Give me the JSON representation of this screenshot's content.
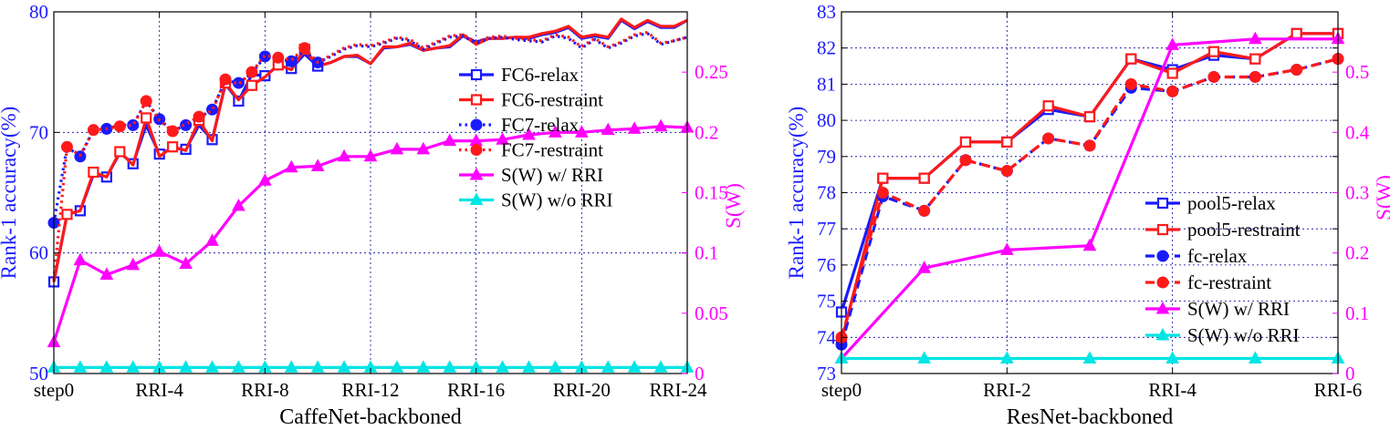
{
  "colors": {
    "blue": "#1a1aff",
    "red": "#ff1a1a",
    "magenta": "#ff00ff",
    "cyan": "#00e5e5",
    "grid": "#0000a0",
    "axis": "#000000"
  },
  "chart_data": [
    {
      "type": "line",
      "xlabel": "CaffeNet-backboned",
      "ylabel": "Rank-1 accuracy(%)",
      "y2label": "S(W)",
      "ylim": [
        50,
        80
      ],
      "yticks": [
        50,
        60,
        70,
        80
      ],
      "y2lim": [
        0,
        0.3
      ],
      "y2ticks": [
        0,
        0.05,
        0.1,
        0.15,
        0.2,
        0.25
      ],
      "y2ticklabels": [
        "0",
        "0.05",
        "0.1",
        "0.15",
        "0.2",
        "0.25"
      ],
      "xlim": [
        0,
        48
      ],
      "xticks": [
        0,
        8,
        16,
        24,
        32,
        40,
        48
      ],
      "xticklabels": [
        "step0",
        "RRI-4",
        "RRI-8",
        "RRI-12",
        "RRI-16",
        "RRI-20",
        "RRI-24"
      ],
      "grid": true,
      "legend_position": "center-right",
      "series": [
        {
          "name": "FC6-relax",
          "axis": "left",
          "color": "blue",
          "style": "solid",
          "marker": "square",
          "x": [
            0,
            1,
            2,
            3,
            4,
            5,
            6,
            7,
            8,
            9,
            10,
            11,
            12,
            13,
            14,
            15,
            16,
            17,
            18,
            19,
            20,
            21,
            22,
            23,
            24,
            25,
            26,
            27,
            28,
            29,
            30,
            31,
            32,
            33,
            34,
            35,
            36,
            37,
            38,
            39,
            40,
            41,
            42,
            43,
            44,
            45,
            46,
            47,
            48
          ],
          "values": [
            57.6,
            63.2,
            63.5,
            66.5,
            66.3,
            68.3,
            67.4,
            70.6,
            68.2,
            68.7,
            68.6,
            70.6,
            69.4,
            74.0,
            72.6,
            74.8,
            74.7,
            75.5,
            75.3,
            76.5,
            75.5,
            75.8,
            76.3,
            76.3,
            75.7,
            77.0,
            77.1,
            77.3,
            76.8,
            77.0,
            77.1,
            78.0,
            77.5,
            77.8,
            77.8,
            77.9,
            77.8,
            78.1,
            78.3,
            78.7,
            77.8,
            78.0,
            77.8,
            79.3,
            78.6,
            79.2,
            78.7,
            78.7,
            79.3
          ],
          "markers_at": [
            0,
            2,
            4,
            6,
            8,
            10,
            12,
            14,
            16,
            18,
            20
          ]
        },
        {
          "name": "FC6-restraint",
          "axis": "left",
          "color": "red",
          "style": "solid",
          "marker": "square",
          "x": [
            0,
            1,
            2,
            3,
            4,
            5,
            6,
            7,
            8,
            9,
            10,
            11,
            12,
            13,
            14,
            15,
            16,
            17,
            18,
            19,
            20,
            21,
            22,
            23,
            24,
            25,
            26,
            27,
            28,
            29,
            30,
            31,
            32,
            33,
            34,
            35,
            36,
            37,
            38,
            39,
            40,
            41,
            42,
            43,
            44,
            45,
            46,
            47,
            48
          ],
          "values": [
            57.6,
            63.2,
            63.5,
            66.7,
            66.3,
            68.4,
            67.3,
            71.2,
            68.0,
            68.8,
            68.5,
            71.0,
            69.3,
            74.1,
            72.7,
            73.9,
            74.6,
            75.6,
            75.2,
            76.9,
            75.5,
            75.8,
            76.3,
            76.4,
            75.7,
            77.1,
            77.1,
            77.4,
            76.8,
            77.0,
            77.2,
            78.1,
            77.3,
            77.8,
            77.8,
            77.9,
            77.9,
            78.2,
            78.4,
            78.8,
            77.9,
            78.1,
            77.9,
            79.4,
            78.7,
            79.3,
            78.8,
            78.8,
            79.3
          ],
          "markers_at": [
            1,
            3,
            5,
            7,
            9,
            11,
            13,
            15,
            17,
            19
          ]
        },
        {
          "name": "FC7-relax",
          "axis": "left",
          "color": "blue",
          "style": "dotted",
          "marker": "circle",
          "x": [
            0,
            1,
            2,
            3,
            4,
            5,
            6,
            7,
            8,
            9,
            10,
            11,
            12,
            13,
            14,
            15,
            16,
            17,
            18,
            19,
            20,
            21,
            22,
            23,
            24,
            25,
            26,
            27,
            28,
            29,
            30,
            31,
            32,
            33,
            34,
            35,
            36,
            37,
            38,
            39,
            40,
            41,
            42,
            43,
            44,
            45,
            46,
            47,
            48
          ],
          "values": [
            62.5,
            68.8,
            68.0,
            70.2,
            70.3,
            70.6,
            70.6,
            72.6,
            71.1,
            70.1,
            70.6,
            71.2,
            71.9,
            74.3,
            74.1,
            74.9,
            76.3,
            76.1,
            75.9,
            76.8,
            75.8,
            76.3,
            76.9,
            77.2,
            77.1,
            77.4,
            77.8,
            77.6,
            76.9,
            77.4,
            77.9,
            78.0,
            77.4,
            77.8,
            77.9,
            77.7,
            77.6,
            77.5,
            78.0,
            77.8,
            77.0,
            77.7,
            77.0,
            77.4,
            78.0,
            78.2,
            77.3,
            77.6,
            77.9
          ],
          "markers_at": [
            0,
            2,
            4,
            6,
            8,
            10,
            12,
            14,
            16,
            18,
            20
          ]
        },
        {
          "name": "FC7-restraint",
          "axis": "left",
          "color": "red",
          "style": "dotted",
          "marker": "circle",
          "x": [
            0,
            1,
            2,
            3,
            4,
            5,
            6,
            7,
            8,
            9,
            10,
            11,
            12,
            13,
            14,
            15,
            16,
            17,
            18,
            19,
            20,
            21,
            22,
            23,
            24,
            25,
            26,
            27,
            28,
            29,
            30,
            31,
            32,
            33,
            34,
            35,
            36,
            37,
            38,
            39,
            40,
            41,
            42,
            43,
            44,
            45,
            46,
            47,
            48
          ],
          "values": [
            57.8,
            68.8,
            68.1,
            70.2,
            70.3,
            70.5,
            70.6,
            72.6,
            71.0,
            70.1,
            70.7,
            71.3,
            71.8,
            74.4,
            74.0,
            75.0,
            76.4,
            76.2,
            76.0,
            77.0,
            75.8,
            76.4,
            77.0,
            77.3,
            77.2,
            77.5,
            77.9,
            77.7,
            77.0,
            77.5,
            78.0,
            78.1,
            77.5,
            77.9,
            78.0,
            77.8,
            77.7,
            77.6,
            78.1,
            77.9,
            77.1,
            77.8,
            77.1,
            77.5,
            78.1,
            78.3,
            77.4,
            77.6,
            77.9
          ],
          "markers_at": [
            1,
            3,
            5,
            7,
            9,
            11,
            13,
            15,
            17,
            19
          ]
        },
        {
          "name": "S(W) w/ RRI",
          "axis": "right",
          "color": "magenta",
          "style": "solid",
          "marker": "triangle",
          "x": [
            0,
            2,
            4,
            6,
            8,
            10,
            12,
            14,
            16,
            18,
            20,
            22,
            24,
            26,
            28,
            30,
            32,
            34,
            36,
            38,
            40,
            42,
            44,
            46,
            48
          ],
          "values": [
            0.026,
            0.094,
            0.082,
            0.09,
            0.101,
            0.091,
            0.11,
            0.139,
            0.16,
            0.171,
            0.172,
            0.18,
            0.18,
            0.186,
            0.186,
            0.193,
            0.193,
            0.194,
            0.198,
            0.2,
            0.2,
            0.202,
            0.203,
            0.205,
            0.204
          ],
          "markers_at": "all"
        },
        {
          "name": "S(W) w/o RRI",
          "axis": "right",
          "color": "cyan",
          "style": "solid",
          "marker": "triangle",
          "x": [
            0,
            2,
            4,
            6,
            8,
            10,
            12,
            14,
            16,
            18,
            20,
            22,
            24,
            26,
            28,
            30,
            32,
            34,
            36,
            38,
            40,
            42,
            44,
            46,
            48
          ],
          "values": [
            0.005,
            0.005,
            0.005,
            0.005,
            0.005,
            0.005,
            0.005,
            0.005,
            0.005,
            0.005,
            0.005,
            0.005,
            0.005,
            0.005,
            0.005,
            0.005,
            0.005,
            0.005,
            0.005,
            0.005,
            0.005,
            0.005,
            0.005,
            0.005,
            0.005
          ],
          "markers_at": "all"
        }
      ]
    },
    {
      "type": "line",
      "xlabel": "ResNet-backboned",
      "ylabel": "Rank-1 accuracy(%)",
      "y2label": "S(W)",
      "ylim": [
        73,
        83
      ],
      "yticks": [
        73,
        74,
        75,
        76,
        77,
        78,
        79,
        80,
        81,
        82,
        83
      ],
      "y2lim": [
        0,
        0.6
      ],
      "y2ticks": [
        0,
        0.1,
        0.2,
        0.3,
        0.4,
        0.5
      ],
      "y2ticklabels": [
        "0",
        "0.1",
        "0.2",
        "0.3",
        "0.4",
        "0.5"
      ],
      "xlim": [
        0,
        12
      ],
      "xticks": [
        0,
        4,
        8,
        12
      ],
      "xticklabels": [
        "step0",
        "RRI-2",
        "RRI-4",
        "RRI-6"
      ],
      "grid": true,
      "legend_position": "bottom-right",
      "series": [
        {
          "name": "pool5-relax",
          "axis": "left",
          "color": "blue",
          "style": "solid",
          "marker": "square",
          "x": [
            0,
            1,
            2,
            3,
            4,
            5,
            6,
            7,
            8,
            9,
            10,
            11,
            12
          ],
          "values": [
            74.7,
            78.4,
            78.4,
            79.4,
            79.4,
            80.3,
            80.1,
            81.7,
            81.4,
            81.8,
            81.7,
            82.4,
            82.4
          ],
          "markers_at": "all"
        },
        {
          "name": "pool5-restraint",
          "axis": "left",
          "color": "red",
          "style": "solid",
          "marker": "square",
          "x": [
            0,
            1,
            2,
            3,
            4,
            5,
            6,
            7,
            8,
            9,
            10,
            11,
            12
          ],
          "values": [
            73.9,
            78.4,
            78.4,
            79.4,
            79.4,
            80.4,
            80.1,
            81.7,
            81.3,
            81.9,
            81.7,
            82.4,
            82.4
          ],
          "markers_at": "all"
        },
        {
          "name": "fc-relax",
          "axis": "left",
          "color": "blue",
          "style": "dashed",
          "marker": "circle",
          "x": [
            0,
            1,
            2,
            3,
            4,
            5,
            6,
            7,
            8,
            9,
            10,
            11,
            12
          ],
          "values": [
            73.8,
            77.9,
            77.5,
            78.9,
            78.6,
            79.5,
            79.3,
            80.9,
            80.8,
            81.2,
            81.2,
            81.4,
            81.7
          ],
          "markers_at": "all"
        },
        {
          "name": "fc-restraint",
          "axis": "left",
          "color": "red",
          "style": "dashed",
          "marker": "circle",
          "x": [
            0,
            1,
            2,
            3,
            4,
            5,
            6,
            7,
            8,
            9,
            10,
            11,
            12
          ],
          "values": [
            74.0,
            78.0,
            77.5,
            78.9,
            78.6,
            79.5,
            79.3,
            81.0,
            80.8,
            81.2,
            81.2,
            81.4,
            81.7
          ],
          "markers_at": "all"
        },
        {
          "name": "S(W) w/ RRI",
          "axis": "right",
          "color": "magenta",
          "style": "solid",
          "marker": "triangle",
          "x": [
            0,
            2,
            4,
            6,
            8,
            10,
            12
          ],
          "values": [
            0.025,
            0.175,
            0.205,
            0.212,
            0.545,
            0.555,
            0.555
          ],
          "markers_at": "all"
        },
        {
          "name": "S(W) w/o RRI",
          "axis": "right",
          "color": "cyan",
          "style": "solid",
          "marker": "triangle",
          "x": [
            0,
            2,
            4,
            6,
            8,
            10,
            12
          ],
          "values": [
            0.025,
            0.025,
            0.025,
            0.025,
            0.025,
            0.025,
            0.025
          ],
          "markers_at": "all"
        }
      ]
    }
  ]
}
